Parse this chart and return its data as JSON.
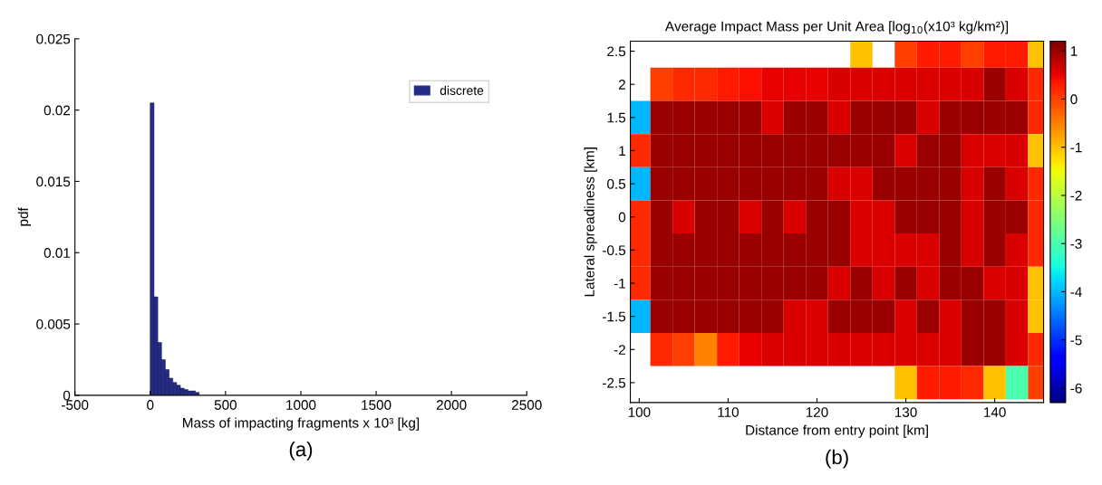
{
  "chart_data": [
    {
      "type": "histogram",
      "xlabel": "Mass of impacting fragments x 10³ [kg]",
      "ylabel": "pdf",
      "annotations": [
        "(a)"
      ],
      "bins": [
        0,
        25,
        50,
        75,
        100,
        125,
        150,
        175,
        200,
        225,
        250,
        275,
        300,
        325
      ],
      "series": [
        {
          "name": "discrete",
          "color": "#252c87",
          "values": [
            0.0205,
            0.0069,
            0.0037,
            0.0025,
            0.0018,
            0.0012,
            0.0009,
            0.0007,
            0.0005,
            0.0004,
            0.0003,
            0.0003,
            0.0002
          ]
        }
      ],
      "xlim": [
        -500,
        2500
      ],
      "xticks": [
        -500,
        0,
        500,
        1000,
        1500,
        2000,
        2500
      ],
      "ylim": [
        0,
        0.025
      ],
      "yticks": [
        0,
        0.005,
        0.01,
        0.015,
        0.02,
        0.025
      ],
      "legend": "top right",
      "grid": false
    },
    {
      "type": "heatmap",
      "title": "Average Impact Mass per Unit Area [log$_{10}$(x10³ kg/km²)]",
      "xlabel": "Distance from entry point [km]",
      "ylabel": "Lateral spreadiness [km]",
      "annotations": [
        "(b)"
      ],
      "x": [
        100,
        102.5,
        105,
        107.5,
        110,
        112.5,
        115,
        117.5,
        120,
        122.5,
        125,
        127.5,
        130,
        132.5,
        135,
        137.5,
        140,
        142.5,
        145
      ],
      "y": [
        2.5,
        2.0,
        1.5,
        1.0,
        0.5,
        0,
        -0.5,
        -1.0,
        -1.5,
        -2.0,
        -2.5
      ],
      "cells": [
        [
          null,
          null,
          null,
          null,
          null,
          null,
          null,
          null,
          null,
          null,
          -1,
          null,
          0,
          0.3,
          0.3,
          0,
          0.3,
          0.3,
          -1
        ],
        [
          null,
          0,
          0.2,
          0.2,
          0.3,
          0.4,
          0.5,
          0.5,
          0.5,
          0.6,
          0.6,
          0.6,
          0.6,
          0.6,
          0.6,
          0.6,
          1,
          0.6,
          0.2
        ],
        [
          -4,
          1,
          1,
          1,
          1,
          1,
          0.6,
          1,
          1,
          0.6,
          1,
          1,
          1,
          0.6,
          1,
          1,
          1,
          1,
          0.2
        ],
        [
          0.2,
          1,
          1,
          1,
          1,
          1,
          1,
          1,
          1,
          1,
          1,
          1,
          0.6,
          1,
          1,
          0.6,
          0.6,
          0.6,
          -1
        ],
        [
          -4,
          1,
          1,
          1,
          1,
          1,
          1,
          1,
          1,
          0.6,
          0.6,
          1,
          1,
          1,
          1,
          0.6,
          1,
          0.6,
          0.2
        ],
        [
          0.2,
          1,
          0.6,
          1,
          1,
          0.6,
          1,
          0.6,
          1,
          1,
          0.6,
          0.6,
          1,
          1,
          1,
          0.6,
          1,
          1,
          0.2
        ],
        [
          0.2,
          1,
          1,
          1,
          1,
          1,
          1,
          1,
          1,
          1,
          0.6,
          0.6,
          0.6,
          0.6,
          1,
          0.6,
          1,
          0.6,
          0.2
        ],
        [
          0.2,
          1,
          1,
          1,
          1,
          1,
          1,
          1,
          1,
          0.6,
          1,
          0.6,
          1,
          0.6,
          1,
          1,
          0.6,
          0.6,
          -1
        ],
        [
          -4,
          1,
          1,
          1,
          1,
          1,
          1,
          0.6,
          0.6,
          1,
          1,
          1,
          0.6,
          1,
          0.6,
          1,
          1,
          0.6,
          -1
        ],
        [
          null,
          0.2,
          0,
          -0.5,
          0.3,
          0.5,
          0.6,
          0.6,
          0.6,
          0.6,
          0.6,
          0.6,
          0.6,
          0.6,
          0.6,
          1,
          1,
          0.6,
          0.2
        ],
        [
          null,
          null,
          null,
          null,
          null,
          null,
          null,
          null,
          null,
          null,
          null,
          null,
          -1,
          0.3,
          0.3,
          0.2,
          -1,
          -3,
          0
        ]
      ],
      "xlim": [
        99,
        145.5
      ],
      "xticks": [
        100,
        110,
        120,
        130,
        140
      ],
      "ylim": [
        -2.8,
        2.65
      ],
      "yticks": [
        -2.5,
        -2,
        -1.5,
        -1,
        -0.5,
        0,
        0.5,
        1,
        1.5,
        2,
        2.5
      ],
      "clim": [
        -6.3,
        1.2
      ],
      "cticks": [
        -6,
        -5,
        -4,
        -3,
        -2,
        -1,
        0,
        1
      ]
    }
  ]
}
